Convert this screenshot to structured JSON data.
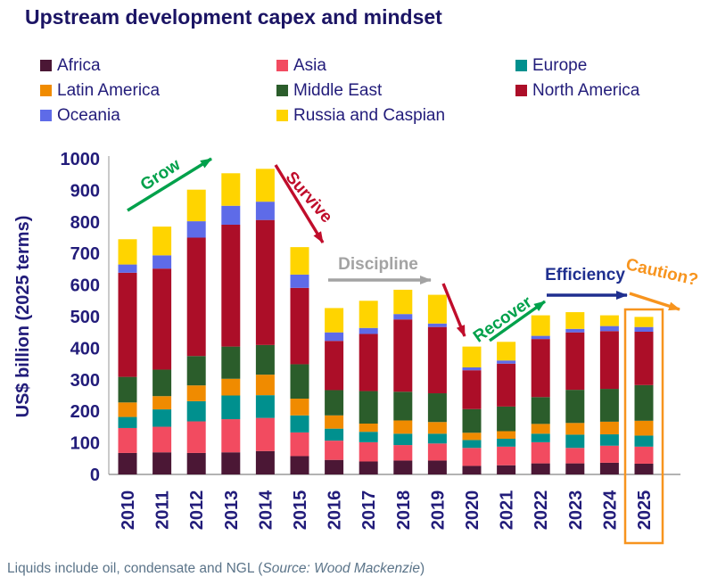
{
  "title": "Upstream development capex and mindset",
  "footer": {
    "prefix": "Liquids include oil, condensate and NGL (",
    "source": "Source: Wood Mackenzie",
    "suffix": ")"
  },
  "chart_data": {
    "type": "bar",
    "subtype": "stacked-vertical",
    "title": "Upstream development capex and mindset",
    "ylabel": "US$ billion (2025 terms)",
    "xlabel": "",
    "ylim": [
      0,
      1000
    ],
    "ytick_step": 100,
    "grid": false,
    "legend_position": "top",
    "categories": [
      "2010",
      "2011",
      "2012",
      "2013",
      "2014",
      "2015",
      "2016",
      "2017",
      "2018",
      "2019",
      "2020",
      "2021",
      "2022",
      "2023",
      "2024",
      "2025"
    ],
    "series": [
      {
        "name": "Africa",
        "color": "#4b1735",
        "values": [
          68,
          70,
          68,
          70,
          74,
          58,
          46,
          41,
          44,
          44,
          27,
          29,
          35,
          35,
          37,
          34
        ]
      },
      {
        "name": "Asia",
        "color": "#f24b60",
        "values": [
          79,
          81,
          100,
          105,
          105,
          75,
          61,
          61,
          49,
          54,
          57,
          59,
          67,
          49,
          54,
          54
        ]
      },
      {
        "name": "Europe",
        "color": "#00908e",
        "values": [
          35,
          55,
          64,
          75,
          72,
          54,
          38,
          33,
          36,
          31,
          25,
          25,
          27,
          42,
          36,
          35
        ]
      },
      {
        "name": "Latin America",
        "color": "#f08b00",
        "values": [
          46,
          42,
          50,
          53,
          65,
          53,
          42,
          26,
          42,
          37,
          23,
          24,
          31,
          37,
          40,
          47
        ]
      },
      {
        "name": "Middle East",
        "color": "#2b5d2b",
        "values": [
          81,
          84,
          93,
          102,
          94,
          109,
          80,
          103,
          91,
          91,
          75,
          78,
          85,
          105,
          104,
          113
        ]
      },
      {
        "name": "North America",
        "color": "#ac0e28",
        "values": [
          330,
          320,
          375,
          386,
          396,
          242,
          156,
          181,
          229,
          210,
          123,
          136,
          184,
          182,
          183,
          169
        ]
      },
      {
        "name": "Oceania",
        "color": "#5e6be8",
        "values": [
          26,
          42,
          52,
          60,
          58,
          42,
          27,
          19,
          17,
          11,
          9,
          10,
          10,
          11,
          16,
          15
        ]
      },
      {
        "name": "Russia and Caspian",
        "color": "#ffd400",
        "values": [
          80,
          91,
          100,
          103,
          104,
          87,
          77,
          86,
          77,
          91,
          66,
          59,
          65,
          53,
          34,
          32
        ]
      }
    ],
    "totals": [
      745,
      785,
      902,
      954,
      968,
      720,
      527,
      550,
      585,
      569,
      405,
      420,
      504,
      514,
      504,
      499
    ],
    "annotations": [
      {
        "id": "grow",
        "label": "Grow",
        "color": "#00a14b",
        "kind": "arrow-up-right"
      },
      {
        "id": "survive",
        "label": "Survive",
        "color": "#c00d2b",
        "kind": "arrow-down-right"
      },
      {
        "id": "discipline",
        "label": "Discipline",
        "color": "#a3a3a3",
        "kind": "arrow-right"
      },
      {
        "id": "plunge",
        "label": "",
        "color": "#c00d2b",
        "kind": "arrow-down"
      },
      {
        "id": "recover",
        "label": "Recover",
        "color": "#00a14b",
        "kind": "arrow-up-right"
      },
      {
        "id": "efficiency",
        "label": "Efficiency",
        "color": "#1f2f8f",
        "kind": "arrow-right"
      },
      {
        "id": "caution",
        "label": "Caution?",
        "color": "#f7941e",
        "kind": "arrow-right-down"
      }
    ],
    "highlighted_category": "2025",
    "highlight_color": "#f7941e",
    "axis_text_color": "#221c7a"
  }
}
